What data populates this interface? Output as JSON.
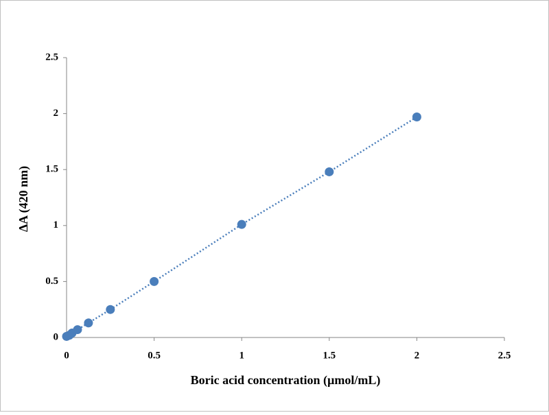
{
  "chart_data": {
    "type": "scatter",
    "x_label": "Boric acid concentration (µmol/mL)",
    "y_label": "ΔA (420 nm)",
    "series": [
      {
        "name": "Boric acid",
        "color": "#4a7ebb",
        "x": [
          0,
          0.015625,
          0.03125,
          0.0625,
          0.125,
          0.25,
          0.5,
          1,
          1.5,
          2
        ],
        "values": [
          0.01,
          0.02,
          0.04,
          0.07,
          0.13,
          0.25,
          0.5,
          1.01,
          1.48,
          1.97
        ]
      }
    ],
    "trendline": true,
    "xlim": [
      0,
      2.5
    ],
    "xticks": [
      0,
      0.5,
      1,
      1.5,
      2,
      2.5
    ],
    "ylim": [
      0,
      2.5
    ],
    "yticks": [
      0,
      0.5,
      1,
      1.5,
      2,
      2.5
    ],
    "grid": false
  }
}
